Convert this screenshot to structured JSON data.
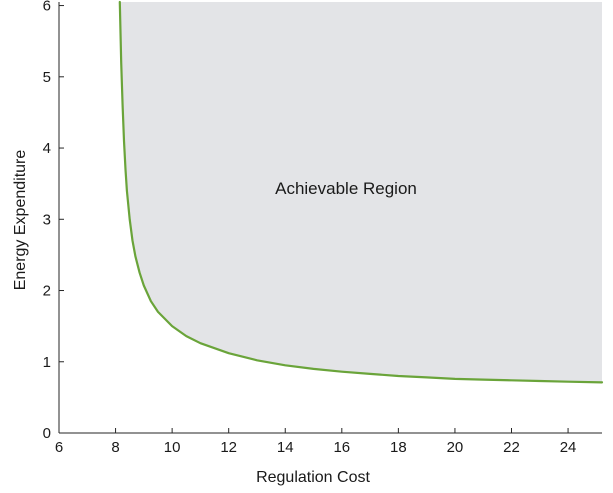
{
  "chart_data": {
    "type": "area",
    "xlabel": "Regulation Cost",
    "ylabel": "Energy Expenditure",
    "xlim": [
      6,
      25.2
    ],
    "ylim": [
      0,
      6.05
    ],
    "x_ticks": [
      6,
      8,
      10,
      12,
      14,
      16,
      18,
      20,
      22,
      24
    ],
    "y_ticks": [
      0,
      1,
      2,
      3,
      4,
      5,
      6
    ],
    "grid": false,
    "legend": "none",
    "annotation": "Achievable Region",
    "series": [
      {
        "x": [
          8.15,
          8.2,
          8.25,
          8.3,
          8.35,
          8.4,
          8.5,
          8.6,
          8.7,
          8.85,
          9.0,
          9.25,
          9.5,
          10.0,
          10.5,
          11.0,
          12.0,
          13.0,
          14.0,
          15.0,
          16.0,
          17.0,
          18.0,
          19.0,
          20.0,
          21.0,
          22.0,
          23.0,
          24.0,
          25.2
        ],
        "y": [
          6.05,
          5.2,
          4.6,
          4.1,
          3.7,
          3.4,
          3.0,
          2.7,
          2.48,
          2.25,
          2.07,
          1.85,
          1.7,
          1.5,
          1.36,
          1.26,
          1.12,
          1.02,
          0.95,
          0.9,
          0.86,
          0.83,
          0.8,
          0.78,
          0.76,
          0.75,
          0.74,
          0.73,
          0.72,
          0.71
        ]
      }
    ],
    "colors": {
      "frontier": "#6aa43a",
      "region_fill": "#e3e4e7",
      "axis": "#262626"
    }
  }
}
